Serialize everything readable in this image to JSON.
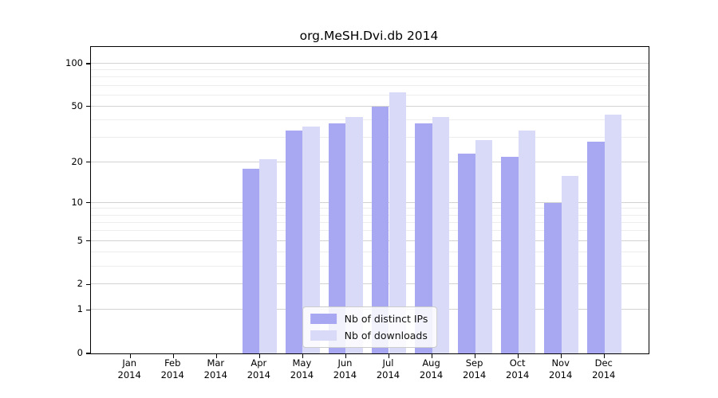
{
  "title": "org.MeSH.Dvi.db 2014",
  "chart_data": {
    "type": "bar",
    "title": "org.MeSH.Dvi.db 2014",
    "categories": [
      "Jan",
      "Feb",
      "Mar",
      "Apr",
      "May",
      "Jun",
      "Jul",
      "Aug",
      "Sep",
      "Oct",
      "Nov",
      "Dec"
    ],
    "year_label": "2014",
    "series": [
      {
        "name": "Nb of distinct IPs",
        "color": "#a8a8f2",
        "values": [
          0,
          0,
          0,
          18,
          34,
          38,
          50,
          38,
          23,
          22,
          10,
          28
        ]
      },
      {
        "name": "Nb of downloads",
        "color": "#d9d9f8",
        "values": [
          0,
          0,
          0,
          21,
          36,
          42,
          63,
          42,
          29,
          34,
          16,
          44
        ]
      }
    ],
    "yscale": "log1p",
    "yticks": [
      100,
      50,
      20,
      10,
      5,
      2,
      1,
      0
    ],
    "minor_gridlines": [
      3,
      4,
      6,
      7,
      8,
      9,
      30,
      40,
      60,
      70,
      80,
      90
    ],
    "ylim": [
      0,
      130
    ],
    "grid": true,
    "legend_position": "bottom-center",
    "colors": {
      "bar_dark": "#a8a8f2",
      "bar_light": "#d9d9f8",
      "grid_major": "#d2d2d2",
      "grid_minor": "#ededed",
      "axis": "#000000",
      "legend_border": "#cccccc",
      "background": "#ffffff"
    }
  }
}
